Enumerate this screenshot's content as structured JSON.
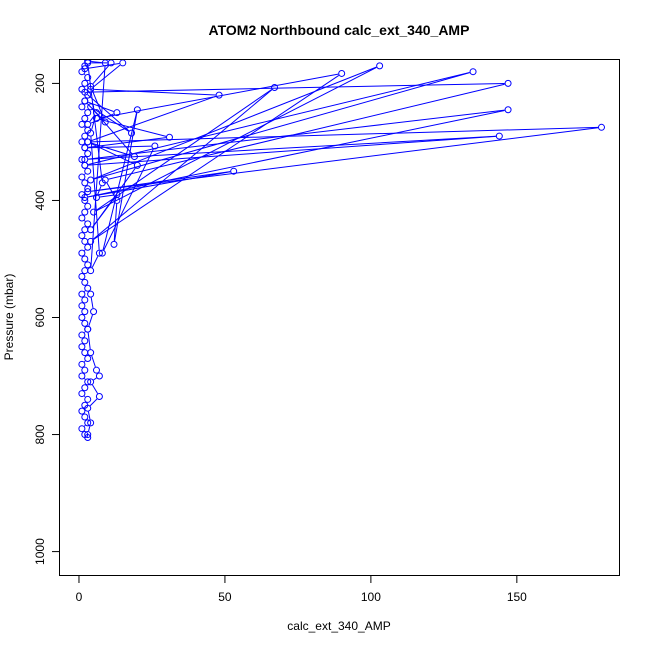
{
  "chart_data": {
    "type": "line",
    "title": "ATOM2 Northbound calc_ext_340_AMP",
    "xlabel": "calc_ext_340_AMP",
    "ylabel": "Pressure (mbar)",
    "xlim": [
      -6.5,
      185
    ],
    "ylim": [
      1040,
      160
    ],
    "y_reversed": true,
    "grid": false,
    "x_ticks": [
      0,
      50,
      100,
      150
    ],
    "y_ticks": [
      200,
      400,
      600,
      800,
      1000
    ],
    "color": "#0000ff",
    "marker": "open-circle",
    "series": [
      {
        "values": [
          [
            3,
            805
          ],
          [
            2,
            800
          ],
          [
            1,
            790
          ],
          [
            3,
            780
          ],
          [
            2,
            770
          ],
          [
            1,
            760
          ],
          [
            2,
            750
          ],
          [
            3,
            740
          ],
          [
            1,
            730
          ],
          [
            2,
            720
          ],
          [
            3,
            710
          ],
          [
            1,
            700
          ],
          [
            2,
            690
          ],
          [
            1,
            680
          ],
          [
            3,
            670
          ],
          [
            2,
            660
          ],
          [
            1,
            650
          ],
          [
            2,
            640
          ],
          [
            1,
            630
          ],
          [
            3,
            620
          ],
          [
            2,
            610
          ],
          [
            1,
            600
          ],
          [
            2,
            590
          ],
          [
            1,
            580
          ],
          [
            2,
            570
          ],
          [
            1,
            560
          ],
          [
            3,
            550
          ],
          [
            2,
            540
          ],
          [
            1,
            530
          ],
          [
            2,
            520
          ],
          [
            3,
            510
          ],
          [
            2,
            500
          ],
          [
            1,
            490
          ],
          [
            3,
            480
          ],
          [
            2,
            470
          ],
          [
            1,
            460
          ],
          [
            2,
            450
          ],
          [
            3,
            440
          ],
          [
            1,
            430
          ],
          [
            2,
            420
          ],
          [
            3,
            410
          ],
          [
            2,
            400
          ],
          [
            1,
            390
          ],
          [
            3,
            380
          ],
          [
            2,
            370
          ],
          [
            1,
            360
          ],
          [
            3,
            350
          ],
          [
            2,
            340
          ],
          [
            1,
            330
          ],
          [
            3,
            320
          ],
          [
            2,
            310
          ],
          [
            1,
            300
          ],
          [
            2,
            290
          ],
          [
            3,
            280
          ],
          [
            1,
            270
          ],
          [
            2,
            260
          ],
          [
            3,
            250
          ],
          [
            1,
            240
          ],
          [
            2,
            230
          ],
          [
            3,
            220
          ],
          [
            1,
            210
          ],
          [
            2,
            200
          ],
          [
            3,
            190
          ],
          [
            1,
            180
          ],
          [
            2,
            170
          ],
          [
            3,
            162
          ]
        ]
      },
      {
        "values": [
          [
            2,
            175
          ],
          [
            15,
            165
          ],
          [
            4,
            210
          ],
          [
            48,
            220
          ],
          [
            3,
            300
          ],
          [
            179,
            275
          ],
          [
            3,
            385
          ],
          [
            53,
            350
          ],
          [
            2,
            395
          ],
          [
            147,
            245
          ],
          [
            2,
            330
          ],
          [
            144,
            290
          ],
          [
            2,
            340
          ],
          [
            135,
            180
          ],
          [
            4,
            365
          ],
          [
            103,
            170
          ],
          [
            5,
            420
          ],
          [
            67,
            207
          ],
          [
            4,
            470
          ],
          [
            90,
            183
          ],
          [
            6,
            260
          ],
          [
            31,
            292
          ],
          [
            2,
            310
          ],
          [
            26,
            307
          ],
          [
            8,
            490
          ],
          [
            20,
            245
          ],
          [
            12,
            475
          ],
          [
            13,
            400
          ],
          [
            9,
            365
          ],
          [
            147,
            200
          ],
          [
            2,
            215
          ],
          [
            18,
            285
          ],
          [
            4,
            240
          ],
          [
            19,
            325
          ],
          [
            3,
            300
          ],
          [
            20,
            340
          ],
          [
            4,
            450
          ],
          [
            13,
            390
          ],
          [
            6,
            395
          ],
          [
            8,
            370
          ],
          [
            3,
            165
          ],
          [
            11,
            165
          ],
          [
            4,
            205
          ],
          [
            9,
            266
          ],
          [
            2,
            230
          ],
          [
            13,
            250
          ],
          [
            3,
            270
          ],
          [
            6,
            250
          ],
          [
            4,
            285
          ],
          [
            7,
            490
          ],
          [
            4,
            520
          ],
          [
            9,
            165
          ],
          [
            3,
            162
          ]
        ]
      },
      {
        "values": [
          [
            4,
            560
          ],
          [
            5,
            590
          ],
          [
            3,
            620
          ],
          [
            4,
            660
          ],
          [
            6,
            690
          ],
          [
            7,
            700
          ],
          [
            4,
            710
          ],
          [
            7,
            735
          ],
          [
            3,
            755
          ],
          [
            4,
            780
          ],
          [
            3,
            800
          ]
        ]
      }
    ]
  }
}
